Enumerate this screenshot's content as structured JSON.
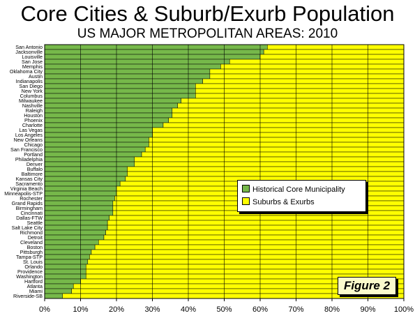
{
  "chart_data": {
    "type": "bar",
    "orientation": "horizontal",
    "stacked": true,
    "title": "Core Cities & Suburb/Exurb Population",
    "subtitle": "US MAJOR METROPOLITAN AREAS: 2010",
    "figure_label": "Figure 2",
    "xlim": [
      0,
      100
    ],
    "x_ticks": [
      "0%",
      "10%",
      "20%",
      "30%",
      "40%",
      "50%",
      "60%",
      "70%",
      "80%",
      "90%",
      "100%"
    ],
    "grid": "vertical",
    "legend_placement": "center-right",
    "categories": [
      "San Antonio",
      "Jacksonville",
      "Louisville",
      "San Jose",
      "Memphis",
      "Oklahoma City",
      "Austin",
      "Indianapolis",
      "San Diego",
      "New York",
      "Columbus",
      "Milwaukee",
      "Nashville",
      "Raleigh",
      "Houston",
      "Phoenix",
      "Charlotte",
      "Las Vegas",
      "Los Angeles",
      "New Orleans",
      "Chicago",
      "San Francisco",
      "Portland",
      "Philadelphia",
      "Denver",
      "Buffalo",
      "Baltimore",
      "Kansas City",
      "Sacramento",
      "Virginia Beach",
      "Minneapolis-STP",
      "Rochester",
      "Grand Rapids",
      "Birmingham",
      "Cincinnati",
      "Dallas-FTW",
      "Seattle",
      "Salt Lake City",
      "Richmond",
      "Detroit",
      "Cleveland",
      "Boston",
      "Pittsburgh",
      "Tampa-STP",
      "St. Louis",
      "Orlando",
      "Providence",
      "Washington",
      "Hartford",
      "Atlanta",
      "Miami",
      "Riverside-SB"
    ],
    "series": [
      {
        "name": "Historical Core Municipality",
        "color": "#76b84a",
        "values": [
          62,
          61,
          60,
          51.5,
          49,
          46,
          46,
          44,
          42,
          42,
          42,
          38,
          37,
          35.5,
          35.5,
          34.5,
          33,
          30,
          30,
          29,
          29,
          28,
          27,
          25,
          25,
          23,
          23,
          22.5,
          21,
          20,
          20,
          19.5,
          19,
          19,
          19,
          18,
          17.5,
          17.5,
          17,
          16.5,
          15,
          14,
          13,
          12.5,
          12,
          11.5,
          11.5,
          11.5,
          10,
          8,
          7.5,
          5
        ]
      },
      {
        "name": "Suburbs & Exurbs",
        "color": "#ffff00",
        "values": [
          38,
          39,
          40,
          48.5,
          51,
          54,
          54,
          56,
          58,
          58,
          58,
          62,
          63,
          64.5,
          64.5,
          65.5,
          67,
          70,
          70,
          71,
          71,
          72,
          73,
          75,
          75,
          77,
          77,
          77.5,
          79,
          80,
          80,
          80.5,
          81,
          81,
          81,
          82,
          82.5,
          82.5,
          83,
          83.5,
          85,
          86,
          87,
          87.5,
          88,
          88.5,
          88.5,
          88.5,
          90,
          92,
          92.5,
          95
        ]
      }
    ]
  }
}
